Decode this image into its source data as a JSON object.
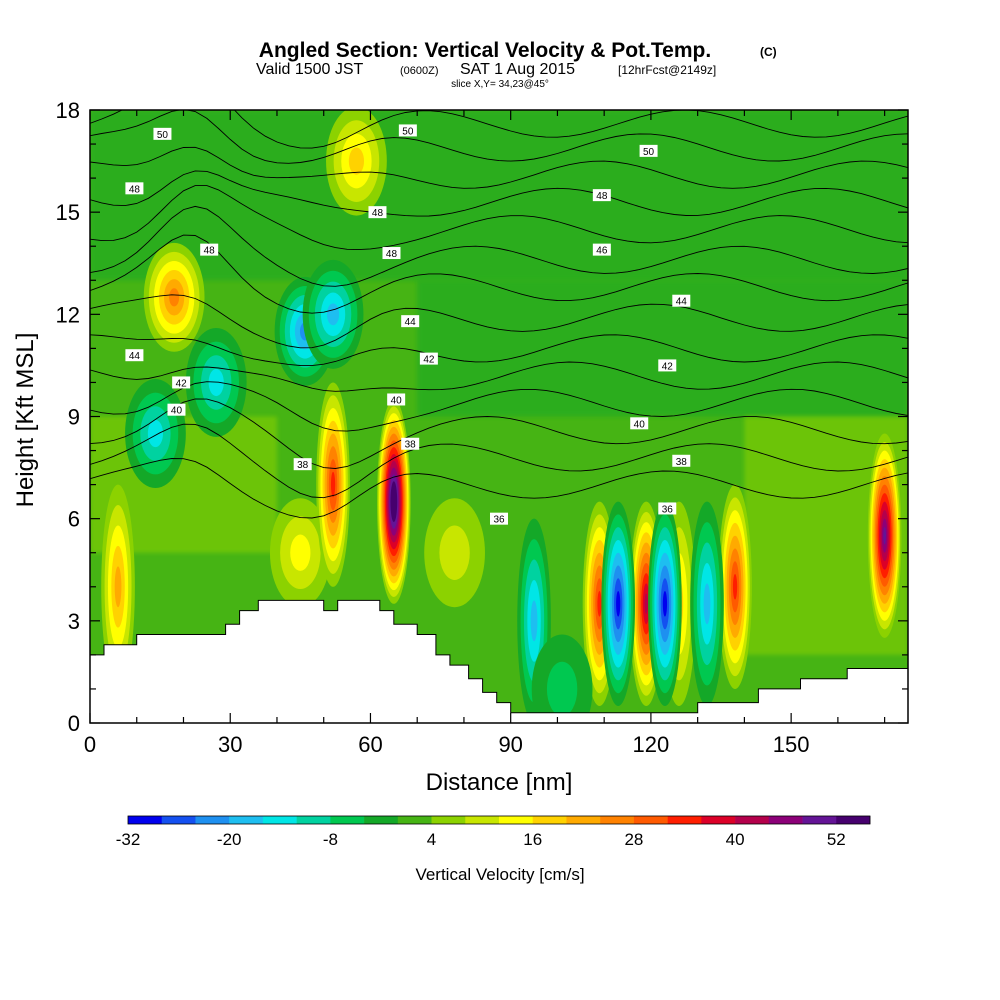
{
  "chart_data": {
    "type": "heatmap",
    "title": "Angled Section: Vertical Velocity & Pot.Temp.",
    "title_units": "(C)",
    "subtitle_parts": [
      "Valid 1500 JST",
      "(0600Z)",
      "SAT 1 Aug 2015",
      "[12hrFcst@2149z]"
    ],
    "subtitle2": "slice X,Y= 34,23@45°",
    "xlabel": "Distance [nm]",
    "ylabel": "Height [Kft MSL]",
    "xlim": [
      0,
      175
    ],
    "ylim": [
      0,
      18
    ],
    "xticks": [
      0,
      30,
      60,
      90,
      120,
      150
    ],
    "yticks": [
      0,
      3,
      6,
      9,
      12,
      15,
      18
    ],
    "colorbar": {
      "label": "Vertical Velocity [cm/s]",
      "tick_labels": [
        "-32",
        "-20",
        "-8",
        "4",
        "16",
        "28",
        "40",
        "52"
      ],
      "tick_values": [
        -32,
        -20,
        -8,
        4,
        16,
        28,
        40,
        52
      ],
      "min": -32,
      "max": 58,
      "step": 4,
      "colors": [
        "#0000ee",
        "#1450f0",
        "#1e90f0",
        "#1ebef0",
        "#00e6e6",
        "#00d2a0",
        "#00c850",
        "#14a828",
        "#46b414",
        "#8cd200",
        "#c8e600",
        "#ffff00",
        "#ffd200",
        "#ffaa00",
        "#ff8200",
        "#ff5a00",
        "#ff1e00",
        "#dc0028",
        "#b4004b",
        "#8c0078",
        "#641496",
        "#46006e"
      ]
    },
    "terrain_profile": [
      [
        0,
        2
      ],
      [
        3,
        2
      ],
      [
        3,
        2.3
      ],
      [
        10,
        2.3
      ],
      [
        10,
        2.6
      ],
      [
        29,
        2.6
      ],
      [
        29,
        2.9
      ],
      [
        32,
        2.9
      ],
      [
        32,
        3.3
      ],
      [
        36,
        3.3
      ],
      [
        36,
        3.6
      ],
      [
        50,
        3.6
      ],
      [
        50,
        3.3
      ],
      [
        53,
        3.3
      ],
      [
        53,
        3.6
      ],
      [
        62,
        3.6
      ],
      [
        62,
        3.3
      ],
      [
        65,
        3.3
      ],
      [
        65,
        2.9
      ],
      [
        70,
        2.9
      ],
      [
        70,
        2.6
      ],
      [
        74,
        2.6
      ],
      [
        74,
        2.0
      ],
      [
        77,
        2.0
      ],
      [
        77,
        1.7
      ],
      [
        81,
        1.7
      ],
      [
        81,
        1.3
      ],
      [
        84,
        1.3
      ],
      [
        84,
        0.9
      ],
      [
        87,
        0.9
      ],
      [
        87,
        0.6
      ],
      [
        90,
        0.6
      ],
      [
        90,
        0.3
      ],
      [
        130,
        0.3
      ],
      [
        130,
        0.6
      ],
      [
        143,
        0.6
      ],
      [
        143,
        1.0
      ],
      [
        152,
        1.0
      ],
      [
        152,
        1.3
      ],
      [
        162,
        1.3
      ],
      [
        162,
        1.6
      ],
      [
        175,
        1.6
      ]
    ],
    "updraft_cores": [
      {
        "x": 18,
        "z": 12.5,
        "w": 24
      },
      {
        "x": 6,
        "z": 4.0,
        "w": 20
      },
      {
        "x": 45,
        "z": 5.0,
        "w": 12
      },
      {
        "x": 52,
        "z": 7.0,
        "w": 30
      },
      {
        "x": 57,
        "z": 16.5,
        "w": 16
      },
      {
        "x": 65,
        "z": 6.5,
        "w": 58
      },
      {
        "x": 78,
        "z": 5.0,
        "w": 8
      },
      {
        "x": 109,
        "z": 3.5,
        "w": 30
      },
      {
        "x": 119,
        "z": 3.5,
        "w": 38
      },
      {
        "x": 126,
        "z": 3.5,
        "w": 16
      },
      {
        "x": 138,
        "z": 4.0,
        "w": 32
      },
      {
        "x": 170,
        "z": 5.5,
        "w": 48
      }
    ],
    "downdraft_cores": [
      {
        "x": 46,
        "z": 11.5,
        "w": -22
      },
      {
        "x": 52,
        "z": 12.0,
        "w": -18
      },
      {
        "x": 14,
        "z": 8.5,
        "w": -14
      },
      {
        "x": 27,
        "z": 10.0,
        "w": -14
      },
      {
        "x": 95,
        "z": 3.0,
        "w": -20
      },
      {
        "x": 113,
        "z": 3.5,
        "w": -32
      },
      {
        "x": 123,
        "z": 3.5,
        "w": -30
      },
      {
        "x": 132,
        "z": 3.5,
        "w": -18
      },
      {
        "x": 101,
        "z": 1.0,
        "w": -6
      }
    ],
    "isentrope_labels": [
      {
        "text": "50",
        "x": 15.5,
        "z": 17.3
      },
      {
        "text": "50",
        "x": 68.0,
        "z": 17.4
      },
      {
        "text": "50",
        "x": 119.5,
        "z": 16.8
      },
      {
        "text": "48",
        "x": 9.5,
        "z": 15.7
      },
      {
        "text": "48",
        "x": 61.5,
        "z": 15.0
      },
      {
        "text": "48",
        "x": 109.5,
        "z": 15.5
      },
      {
        "text": "48",
        "x": 25.5,
        "z": 13.9
      },
      {
        "text": "48",
        "x": 64.5,
        "z": 13.8
      },
      {
        "text": "46",
        "x": 109.5,
        "z": 13.9
      },
      {
        "text": "44",
        "x": 68.5,
        "z": 11.8
      },
      {
        "text": "44",
        "x": 126.5,
        "z": 12.4
      },
      {
        "text": "44",
        "x": 9.5,
        "z": 10.8
      },
      {
        "text": "42",
        "x": 72.5,
        "z": 10.7
      },
      {
        "text": "42",
        "x": 123.5,
        "z": 10.5
      },
      {
        "text": "42",
        "x": 19.5,
        "z": 10.0
      },
      {
        "text": "40",
        "x": 18.5,
        "z": 9.2
      },
      {
        "text": "40",
        "x": 65.5,
        "z": 9.5
      },
      {
        "text": "40",
        "x": 117.5,
        "z": 8.8
      },
      {
        "text": "38",
        "x": 68.5,
        "z": 8.2
      },
      {
        "text": "38",
        "x": 45.5,
        "z": 7.6
      },
      {
        "text": "38",
        "x": 126.5,
        "z": 7.7
      },
      {
        "text": "36",
        "x": 87.5,
        "z": 6.0
      },
      {
        "text": "36",
        "x": 123.5,
        "z": 6.3
      }
    ]
  }
}
